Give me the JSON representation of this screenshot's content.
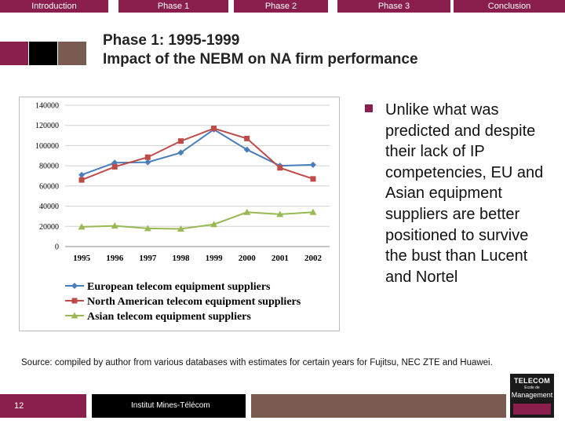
{
  "nav": {
    "tabs": [
      {
        "label": "Introduction",
        "color": "#8a1e4c"
      },
      {
        "label": "Phase 1",
        "color": "#8a1e4c"
      },
      {
        "label": "Phase 2",
        "color": "#8a1e4c"
      },
      {
        "label": "Phase 3",
        "color": "#8a1e4c"
      },
      {
        "label": "Conclusion",
        "color": "#8a1e4c"
      }
    ]
  },
  "colors": {
    "accent": "#8a1e4c",
    "block_black": "#000000",
    "block_brown": "#7a5b52",
    "series_europe": "#4a7ebb",
    "series_na": "#be4b48",
    "series_asia": "#98b954"
  },
  "title": {
    "line1": "Phase 1: 1995-1999",
    "line2": "Impact of the NEBM on NA firm performance"
  },
  "chart_data": {
    "type": "line",
    "title": "",
    "xlabel": "",
    "ylabel": "",
    "x": [
      "1995",
      "1996",
      "1997",
      "1998",
      "1999",
      "2000",
      "2001",
      "2002"
    ],
    "yticks": [
      "0",
      "20000",
      "40000",
      "60000",
      "80000",
      "100000",
      "120000",
      "140000"
    ],
    "ylim": [
      0,
      140000
    ],
    "grid": true,
    "legend": "bottom",
    "series": [
      {
        "name": "European telecom equipment suppliers",
        "marker": "diamond",
        "values": [
          71000,
          83000,
          83500,
          93000,
          116000,
          96000,
          80000,
          81000
        ]
      },
      {
        "name": "North American telecom equipment suppliers",
        "marker": "square",
        "values": [
          66000,
          79000,
          88500,
          104500,
          117000,
          107000,
          78000,
          67000
        ]
      },
      {
        "name": "Asian telecom equipment suppliers",
        "marker": "triangle",
        "values": [
          19500,
          20500,
          18000,
          17500,
          22000,
          34000,
          32000,
          34000
        ]
      }
    ]
  },
  "bullet": {
    "text": "Unlike what was predicted and despite their lack of IP competencies, EU and Asian equipment suppliers are better positioned to survive the bust than Lucent and Nortel"
  },
  "source": "Source: compiled by author from various databases with estimates for certain years for Fujitsu, NEC ZTE and Huawei.",
  "footer": {
    "page_number": "12",
    "institution": "Institut Mines-Télécom"
  },
  "logo": {
    "line1": "TELECOM",
    "line2": "Ecole de",
    "line3": "Management"
  }
}
